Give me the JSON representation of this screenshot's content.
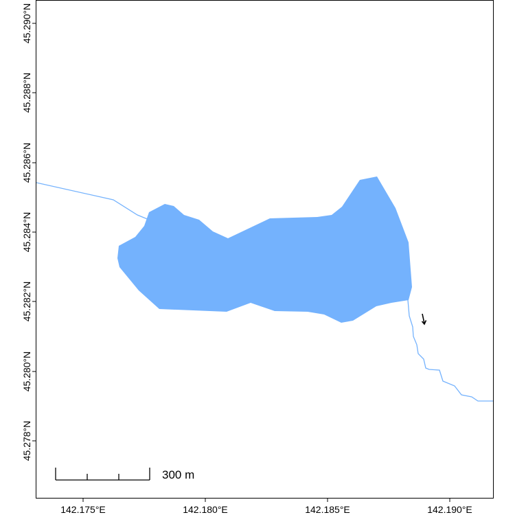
{
  "map": {
    "colors": {
      "water": "#74b2fd",
      "river": "#74b2fd",
      "frame": "#000000",
      "background": "#ffffff"
    },
    "x_ticks": [
      "142.175°E",
      "142.180°E",
      "142.185°E",
      "142.190°E"
    ],
    "y_ticks": [
      "45.278°N",
      "45.280°N",
      "45.282°N",
      "45.284°N",
      "45.286°N",
      "45.288°N",
      "45.290°N"
    ],
    "scale_bar": {
      "label": "300 m"
    },
    "north_arrow": {
      "icon": "flow-arrow-icon"
    }
  }
}
